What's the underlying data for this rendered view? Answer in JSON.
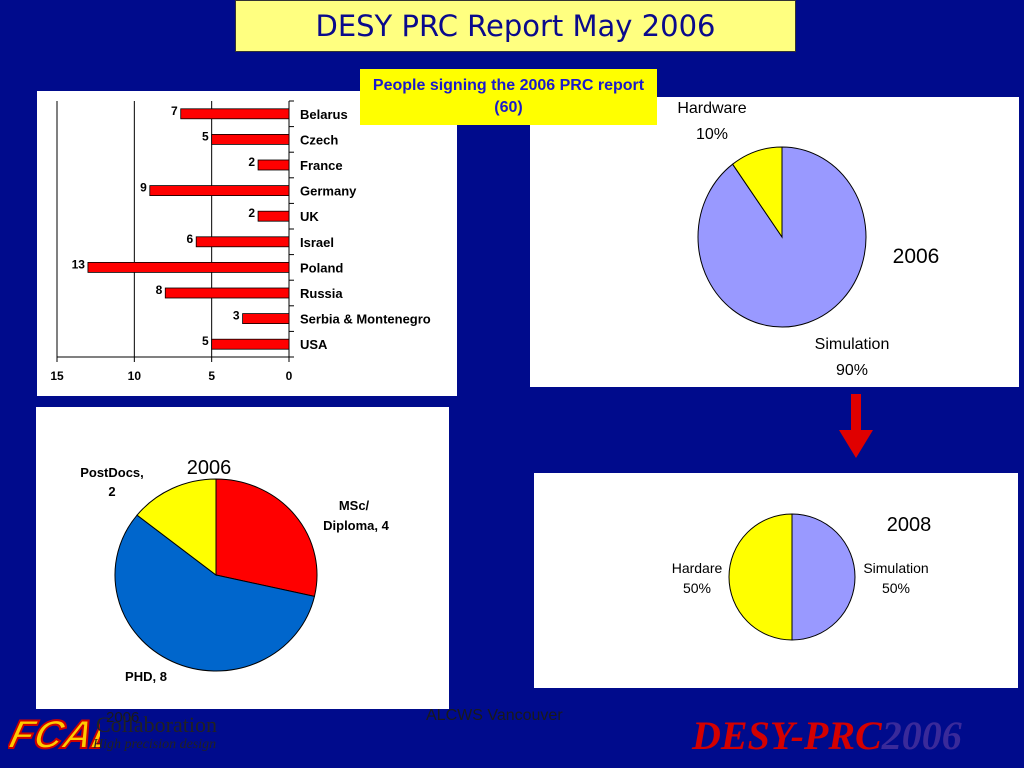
{
  "slide": {
    "title": "DESY PRC Report May 2006",
    "subtitle": "People signing the 2006 PRC report (60)",
    "footer_date": "2006",
    "footer_center": "ALCWS Vancouver",
    "brand_red": "DESY-PRC",
    "brand_year": "2006",
    "logo_text": "FCAL",
    "logo_collab": "Collaboration",
    "logo_tagline": "High precision design"
  },
  "colors": {
    "background": "#000b8c",
    "bar": "#ff0000",
    "pie_simulation": "#9999ff",
    "pie_yellow": "#ffff00",
    "pie_red": "#ff0000",
    "pie_blue": "#0066cc",
    "arrow": "#e00000"
  },
  "chart_data": [
    {
      "type": "bar",
      "orientation": "horizontal",
      "categories": [
        "Belarus",
        "Czech",
        "France",
        "Germany",
        "UK",
        "Israel",
        "Poland",
        "Russia",
        "Serbia & Montenegro",
        "USA"
      ],
      "values": [
        7,
        5,
        2,
        9,
        2,
        6,
        13,
        8,
        3,
        5
      ],
      "xlim": [
        15,
        0
      ],
      "xticks": [
        "15",
        "10",
        "5",
        "0"
      ],
      "grid": true
    },
    {
      "type": "pie",
      "title": "2006",
      "slices": [
        {
          "label": "Simulation",
          "pct_label": "90%",
          "value": 90,
          "color": "#9999ff"
        },
        {
          "label": "Hardware",
          "pct_label": "10%",
          "value": 10,
          "color": "#ffff00"
        }
      ]
    },
    {
      "type": "pie",
      "title": "2006",
      "slices": [
        {
          "label": "MSc/",
          "label2": "Diploma, 4",
          "value": 4,
          "color": "#ff0000"
        },
        {
          "label": "PHD, 8",
          "value": 8,
          "color": "#0066cc"
        },
        {
          "label": "PostDocs,",
          "label2": "2",
          "value": 2,
          "color": "#ffff00"
        }
      ]
    },
    {
      "type": "pie",
      "title": "2008",
      "slices": [
        {
          "label": "Simulation",
          "pct_label": "50%",
          "value": 50,
          "color": "#9999ff"
        },
        {
          "label": "Hardare",
          "pct_label": "50%",
          "value": 50,
          "color": "#ffff00"
        }
      ]
    }
  ]
}
